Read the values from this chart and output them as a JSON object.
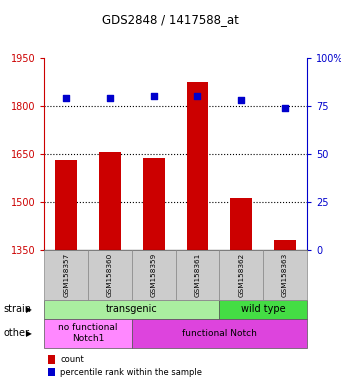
{
  "title": "GDS2848 / 1417588_at",
  "samples": [
    "GSM158357",
    "GSM158360",
    "GSM158359",
    "GSM158361",
    "GSM158362",
    "GSM158363"
  ],
  "counts": [
    1630,
    1655,
    1635,
    1875,
    1510,
    1380
  ],
  "percentiles": [
    79,
    79,
    80,
    80,
    78,
    74
  ],
  "ylim_left": [
    1350,
    1950
  ],
  "ylim_right": [
    0,
    100
  ],
  "yticks_left": [
    1350,
    1500,
    1650,
    1800,
    1950
  ],
  "yticks_right": [
    0,
    25,
    50,
    75,
    100
  ],
  "bar_color": "#cc0000",
  "dot_color": "#0000cc",
  "bar_width": 0.5,
  "strain_groups": [
    {
      "label": "transgenic",
      "span": 4,
      "color": "#aaeea0"
    },
    {
      "label": "wild type",
      "span": 2,
      "color": "#44dd44"
    }
  ],
  "other_groups": [
    {
      "label": "no functional\nNotch1",
      "span": 2,
      "color": "#ff88ff"
    },
    {
      "label": "functional Notch",
      "span": 4,
      "color": "#dd44dd"
    }
  ],
  "strain_label": "strain",
  "other_label": "other",
  "legend_items": [
    {
      "label": "count",
      "color": "#cc0000"
    },
    {
      "label": "percentile rank within the sample",
      "color": "#0000cc"
    }
  ],
  "tick_color_left": "#cc0000",
  "tick_color_right": "#0000cc",
  "sample_box_color": "#cccccc",
  "grid_yticks": [
    1500,
    1650,
    1800
  ]
}
